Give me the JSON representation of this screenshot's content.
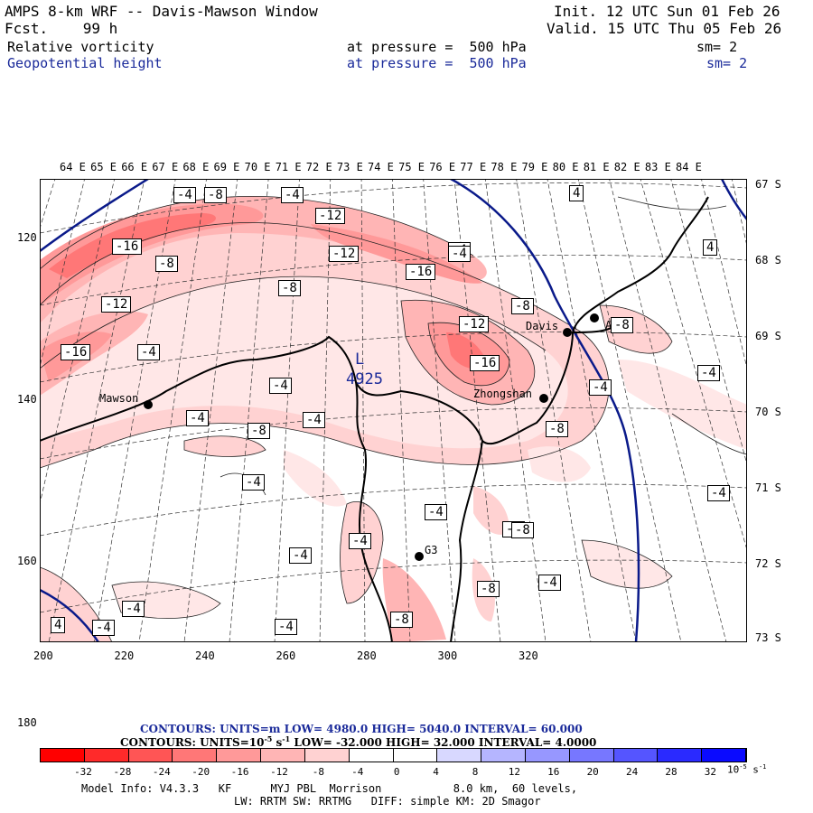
{
  "header": {
    "title": "AMPS 8-km WRF -- Davis-Mawson Window",
    "fcst": "Fcst.    99 h",
    "init": "Init. 12 UTC Sun 01 Feb 26",
    "valid": "Valid. 15 UTC Thu 05 Feb 26",
    "field1": {
      "name": "Relative vorticity",
      "level": "at pressure =  500 hPa",
      "sm": "sm= 2"
    },
    "field2": {
      "name": "Geopotential height",
      "level": "at pressure =  500 hPa",
      "sm": "sm= 2"
    }
  },
  "axes": {
    "lon_labels": [
      "64 E",
      "65 E",
      "66 E",
      "67 E",
      "68 E",
      "69 E",
      "70 E",
      "71 E",
      "72 E",
      "73 E",
      "74 E",
      "75 E",
      "76 E",
      "77 E",
      "78 E",
      "79 E",
      "80 E",
      "81 E",
      "82 E",
      "83 E",
      "84 E"
    ],
    "lat_labels": [
      "67 S",
      "68 S",
      "69 S",
      "70 S",
      "71 S",
      "72 S",
      "73 S"
    ],
    "x_ticks": [
      "200",
      "220",
      "240",
      "260",
      "280",
      "300",
      "320"
    ],
    "y_ticks": [
      "120",
      "140",
      "160",
      "180"
    ]
  },
  "map": {
    "stations": [
      {
        "name": "Mawson"
      },
      {
        "name": "Davis"
      },
      {
        "name": "Zhongshan"
      },
      {
        "name": "G3"
      },
      {
        "name": "AHP8"
      }
    ],
    "height_low_label": "L",
    "height_low_value": "4925",
    "contour_labels": [
      "-4",
      "-8",
      "-4",
      "-12",
      "-16",
      "-8",
      "-12",
      "-16",
      "-8",
      "-12",
      "-4",
      "-8",
      "-12",
      "-16",
      "-4",
      "4",
      "4",
      "-16",
      "-4",
      "-4",
      "-4",
      "-4",
      "-8",
      "-4",
      "-8",
      "-4",
      "-4",
      "-4",
      "-8",
      "-4",
      "-8",
      "-4",
      "-8",
      "-4",
      "-4",
      "4",
      "-4",
      "-4",
      "-8",
      "-4",
      "-8"
    ]
  },
  "footer": {
    "contours1": "CONTOURS:  UNITS=m  LOW=   4980.0      HIGH=  5040.0      INTERVAL=   60.000",
    "contours2": "CONTOURS:  UNITS=10",
    "contours2_exp": "-5",
    "contours2_rest": " s",
    "contours2_exp2": "-1",
    "contours2_tail": "  LOW=  -32.000         HIGH=  32.000        INTERVAL=    4.0000",
    "colorbar_labels": [
      "-32",
      "-28",
      "-24",
      "-20",
      "-16",
      "-12",
      "-8",
      "-4",
      "0",
      "4",
      "8",
      "12",
      "16",
      "20",
      "24",
      "28",
      "32"
    ],
    "colorbar_units": "10",
    "colorbar_units_exp": "-5",
    "colorbar_units_rest": " s",
    "colorbar_units_exp2": "-1",
    "model_info1": "Model Info: V4.3.3   KF      MYJ PBL  Morrison           8.0 km,  60 levels,",
    "model_info2": "LW: RRTM SW: RRTMG   DIFF: simple KM: 2D Smagor"
  },
  "colors": {
    "colorbar": [
      "#ff0000",
      "#ff2a2a",
      "#ff5555",
      "#ff7777",
      "#ff9999",
      "#ffb5b5",
      "#ffd2d2",
      "#ffffff",
      "#ffffff",
      "#d8d8ff",
      "#b5b5ff",
      "#9797ff",
      "#7777ff",
      "#5555ff",
      "#2a2aff",
      "#0a0aff"
    ],
    "geopotential": "#0a1a8a",
    "title_blue": "#1a2a9a"
  }
}
